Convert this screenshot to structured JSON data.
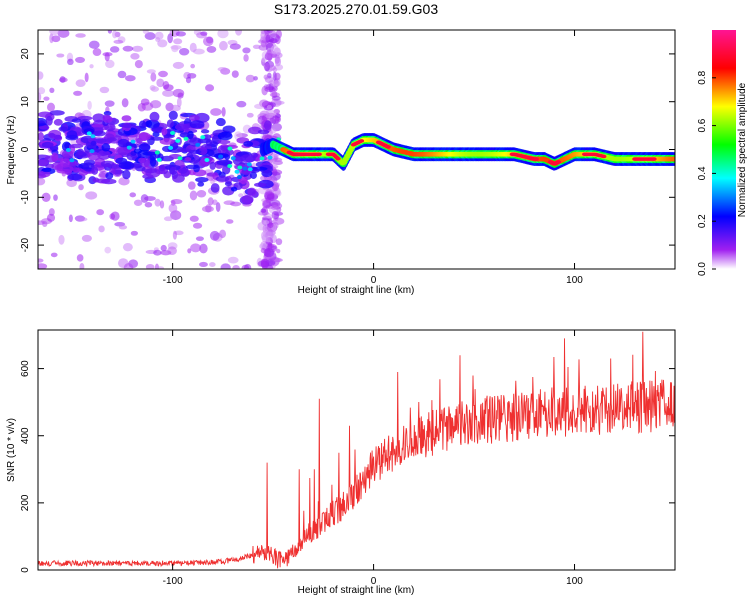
{
  "title": "S173.2025.270.01.59.G03",
  "chart_data": [
    {
      "type": "heatmap",
      "title": "S173.2025.270.01.59.G03",
      "xlabel": "Height of straight line (km)",
      "ylabel": "Frequency (Hz)",
      "xlim": [
        -167,
        150
      ],
      "ylim": [
        -25,
        25
      ],
      "xticks": [
        -100,
        0,
        100
      ],
      "yticks": [
        -20,
        -10,
        0,
        10,
        20
      ],
      "colorbar": {
        "label": "Normalized spectral amplitude",
        "range": [
          0,
          1
        ],
        "ticks": [
          0.0,
          0.2,
          0.4,
          0.6,
          0.8
        ],
        "tick_labels": [
          "0.0",
          "0.2",
          "0.4",
          "0.6",
          "0.8"
        ],
        "colors": [
          "#ffffff",
          "#a020f0",
          "#0000ff",
          "#00ffff",
          "#00ff00",
          "#ffff00",
          "#ff0000",
          "#ff1493"
        ]
      },
      "ridge": {
        "x": [
          -167,
          -150,
          -130,
          -110,
          -90,
          -70,
          -60,
          -55,
          -50,
          -45,
          -40,
          -35,
          -30,
          -25,
          -20,
          -15,
          -10,
          -5,
          0,
          5,
          10,
          20,
          40,
          60,
          70,
          80,
          85,
          90,
          95,
          100,
          110,
          120,
          130,
          140,
          150
        ],
        "freq": [
          1,
          0,
          1,
          0,
          1,
          -3,
          -4,
          0,
          1,
          0,
          -1,
          -1,
          -1,
          -1,
          -1,
          -3,
          1,
          2,
          2,
          1,
          0,
          -1,
          -1,
          -1,
          -1,
          -2,
          -2,
          -3,
          -2,
          -1,
          -1,
          -2,
          -2,
          -2,
          -2
        ]
      }
    },
    {
      "type": "line",
      "xlabel": "Height of straight line (km)",
      "ylabel": "SNR (10 * v/v)",
      "xlim": [
        -167,
        150
      ],
      "ylim": [
        0,
        715
      ],
      "xticks": [
        -100,
        0,
        100
      ],
      "yticks": [
        0,
        200,
        400,
        600
      ],
      "color": "#ef3030",
      "series": [
        {
          "name": "SNR",
          "x": [
            -167,
            -150,
            -130,
            -110,
            -90,
            -75,
            -65,
            -60,
            -55,
            -50,
            -45,
            -40,
            -35,
            -30,
            -25,
            -20,
            -15,
            -10,
            -5,
            0,
            5,
            10,
            20,
            30,
            40,
            50,
            60,
            70,
            80,
            90,
            100,
            110,
            120,
            130,
            140,
            150
          ],
          "y": [
            20,
            20,
            20,
            20,
            20,
            25,
            35,
            45,
            55,
            40,
            20,
            50,
            90,
            120,
            140,
            170,
            190,
            230,
            270,
            310,
            330,
            360,
            380,
            410,
            430,
            440,
            450,
            455,
            460,
            470,
            470,
            475,
            480,
            485,
            490,
            500
          ],
          "spikes": [
            {
              "x": -53,
              "y": 320
            },
            {
              "x": -37,
              "y": 300
            },
            {
              "x": -27,
              "y": 510
            },
            {
              "x": -12,
              "y": 430
            },
            {
              "x": 12,
              "y": 590
            },
            {
              "x": 43,
              "y": 640
            },
            {
              "x": 95,
              "y": 690
            },
            {
              "x": 134,
              "y": 710
            }
          ]
        }
      ]
    }
  ]
}
